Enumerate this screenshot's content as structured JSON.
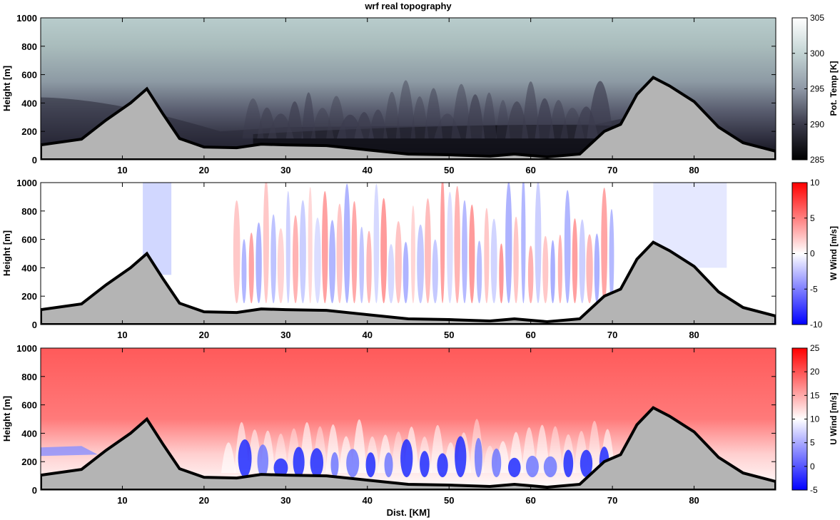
{
  "figure": {
    "title": "wrf real topography",
    "shared_xlabel": "Dist. [KM]"
  },
  "chart_data": [
    {
      "type": "heatmap",
      "title": "wrf real topography",
      "xlabel": "",
      "ylabel": "Height [m]",
      "xlim": [
        0,
        90
      ],
      "ylim": [
        0,
        1000
      ],
      "xticks": [
        10,
        20,
        30,
        40,
        50,
        60,
        70,
        80
      ],
      "yticks": [
        0,
        200,
        400,
        600,
        800,
        1000
      ],
      "colorbar": {
        "label": "Pot. Temp [K]",
        "ticks": [
          285,
          290,
          295,
          300,
          305
        ],
        "range": [
          285,
          305
        ],
        "colormap": "bone",
        "colors": [
          "#000000",
          "#3a3a4a",
          "#8f98a6",
          "#c3d4d4",
          "#ffffff"
        ]
      },
      "terrain_fill": "#b4b4b4",
      "terrain_km": [
        0,
        5,
        8,
        11,
        13,
        15,
        17,
        20,
        24,
        27,
        30,
        35,
        40,
        45,
        50,
        55,
        58,
        62,
        66,
        69,
        71,
        73,
        75,
        77,
        80,
        83,
        86,
        90
      ],
      "terrain_m": [
        105,
        145,
        280,
        400,
        500,
        320,
        150,
        90,
        85,
        110,
        105,
        100,
        70,
        40,
        35,
        25,
        40,
        20,
        40,
        200,
        250,
        460,
        580,
        520,
        410,
        230,
        120,
        60
      ]
    },
    {
      "type": "heatmap",
      "xlabel": "",
      "ylabel": "Height [m]",
      "xlim": [
        0,
        90
      ],
      "ylim": [
        0,
        1000
      ],
      "xticks": [
        10,
        20,
        30,
        40,
        50,
        60,
        70,
        80
      ],
      "yticks": [
        0,
        200,
        400,
        600,
        800,
        1000
      ],
      "colorbar": {
        "label": "W Wind [m/s]",
        "ticks": [
          -10,
          -5,
          0,
          5,
          10
        ],
        "range": [
          -10,
          10
        ],
        "colormap": "blue-white-red",
        "colors": [
          "#0000ff",
          "#ffffff",
          "#ff0000"
        ]
      },
      "terrain_fill": "#b4b4b4",
      "terrain_km": [
        0,
        5,
        8,
        11,
        13,
        15,
        17,
        20,
        24,
        27,
        30,
        35,
        40,
        45,
        50,
        55,
        58,
        62,
        66,
        69,
        71,
        73,
        75,
        77,
        80,
        83,
        86,
        90
      ],
      "terrain_m": [
        105,
        145,
        280,
        400,
        500,
        320,
        150,
        90,
        85,
        110,
        105,
        100,
        70,
        40,
        35,
        25,
        40,
        20,
        40,
        200,
        250,
        460,
        580,
        520,
        410,
        230,
        120,
        60
      ]
    },
    {
      "type": "heatmap",
      "xlabel": "Dist. [KM]",
      "ylabel": "Height [m]",
      "xlim": [
        0,
        90
      ],
      "ylim": [
        0,
        1000
      ],
      "xticks": [
        10,
        20,
        30,
        40,
        50,
        60,
        70,
        80
      ],
      "yticks": [
        0,
        200,
        400,
        600,
        800,
        1000
      ],
      "colorbar": {
        "label": "U Wind [m/s]",
        "ticks": [
          -5,
          0,
          5,
          10,
          15,
          20,
          25
        ],
        "range": [
          -5,
          25
        ],
        "colormap": "blue-white-red",
        "colors": [
          "#0000ff",
          "#ffffff",
          "#ff0000"
        ]
      },
      "terrain_fill": "#b4b4b4",
      "terrain_km": [
        0,
        5,
        8,
        11,
        13,
        15,
        17,
        20,
        24,
        27,
        30,
        35,
        40,
        45,
        50,
        55,
        58,
        62,
        66,
        69,
        71,
        73,
        75,
        77,
        80,
        83,
        86,
        90
      ],
      "terrain_m": [
        105,
        145,
        280,
        400,
        500,
        320,
        150,
        90,
        85,
        110,
        105,
        100,
        70,
        40,
        35,
        25,
        40,
        20,
        40,
        200,
        250,
        460,
        580,
        520,
        410,
        230,
        120,
        60
      ]
    }
  ]
}
